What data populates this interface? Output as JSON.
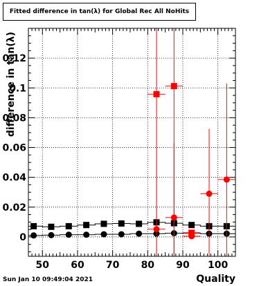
{
  "title": "Fitted difference in tan(λ) for Global Rec All NoHits",
  "timestamp": "Sun Jan 10 09:49:04 2021",
  "chart_data": {
    "type": "scatter",
    "title": "Fitted difference in tan(λ) for Global Rec All NoHits",
    "xlabel": "Quality",
    "ylabel": "difference in tan(λ)",
    "xlim": [
      46,
      105
    ],
    "ylim": [
      -0.013,
      0.14
    ],
    "xticks": [
      50,
      60,
      70,
      80,
      90,
      100
    ],
    "yticks": [
      0,
      0.02,
      0.04,
      0.06,
      0.08,
      0.1,
      0.12
    ],
    "ytick_labels": [
      "0",
      "0.02",
      "0.04",
      "0.06",
      "0.08",
      "0.1",
      "0.12"
    ],
    "grid": true,
    "series": [
      {
        "marker": "square",
        "color": "#000000",
        "line": true,
        "x": [
          47.5,
          52.5,
          57.5,
          62.5,
          67.5,
          72.5,
          77.5,
          82.5,
          87.5,
          92.5,
          97.5,
          102.5
        ],
        "y": [
          0.0072,
          0.0068,
          0.0072,
          0.008,
          0.0088,
          0.009,
          0.0088,
          0.0098,
          0.0092,
          0.008,
          0.0072,
          0.0072
        ],
        "xerr": 2.5,
        "yerr": [
          0,
          0,
          0,
          0,
          0,
          0,
          0,
          0.001,
          0.001,
          0.001,
          0.001,
          0.001
        ]
      },
      {
        "marker": "circle",
        "color": "#000000",
        "line": true,
        "x": [
          47.5,
          52.5,
          57.5,
          62.5,
          67.5,
          72.5,
          77.5,
          82.5,
          87.5,
          92.5,
          97.5,
          102.5
        ],
        "y": [
          0.001,
          0.0012,
          0.0015,
          0.0015,
          0.0018,
          0.0018,
          0.0022,
          0.0022,
          0.0025,
          0.0025,
          0.0022,
          0.0022
        ],
        "xerr": 2.5,
        "yerr": 0
      },
      {
        "marker": "square",
        "color": "#ff0000",
        "line": false,
        "x": [
          82.5,
          87.5,
          92.5
        ],
        "y": [
          0.0958,
          0.1012,
          0.0028
        ],
        "xerr": 2.5,
        "yerr_low": [
          0.105,
          0.113,
          0.003
        ],
        "yerr_high": [
          0.05,
          0.05,
          0.002
        ]
      },
      {
        "marker": "circle",
        "color": "#ff0000",
        "line": false,
        "x": [
          82.5,
          87.5,
          92.5,
          97.5,
          102.5
        ],
        "y": [
          0.0052,
          0.013,
          0.0005,
          0.029,
          0.0385
        ],
        "xerr": 2.5,
        "yerr_low": [
          0.02,
          0.03,
          0.001,
          0.05,
          0.06
        ],
        "yerr_high": [
          0.05,
          0.05,
          0.001,
          0.0435,
          0.0645
        ]
      }
    ]
  }
}
